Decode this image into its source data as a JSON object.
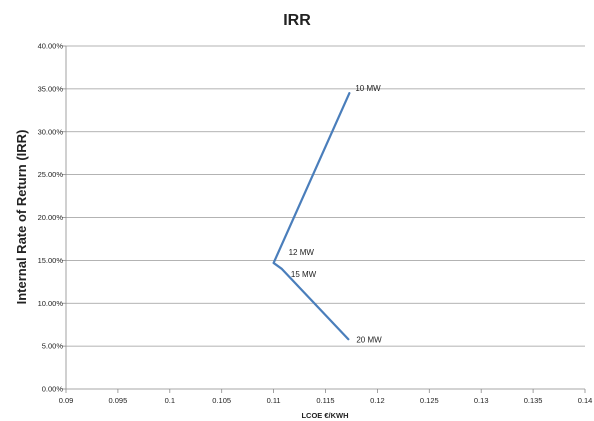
{
  "chart_data": {
    "type": "line",
    "title": "IRR",
    "xlabel": "LCOE  €/KWH",
    "ylabel": "Internal Rate of Return (IRR)",
    "xlim": [
      0.09,
      0.14
    ],
    "ylim": [
      0,
      0.4
    ],
    "grid": true,
    "x_ticks": [
      0.09,
      0.095,
      0.1,
      0.105,
      0.11,
      0.115,
      0.12,
      0.125,
      0.13,
      0.135,
      0.14
    ],
    "x_tick_labels": [
      "0.09",
      "0.095",
      "0.1",
      "0.105",
      "0.11",
      "0.115",
      "0.12",
      "0.125",
      "0.13",
      "0.135",
      "0.14"
    ],
    "y_ticks": [
      0,
      0.05,
      0.1,
      0.15,
      0.2,
      0.25,
      0.3,
      0.35,
      0.4
    ],
    "y_tick_labels": [
      "0.00%",
      "5.00%",
      "10.00%",
      "15.00%",
      "20.00%",
      "25.00%",
      "30.00%",
      "35.00%",
      "40.00%"
    ],
    "series": [
      {
        "color": "#4a7ebb",
        "points": [
          {
            "label": "10 MW",
            "x": 0.1173,
            "y": 0.345
          },
          {
            "label": "12 MW",
            "x": 0.11,
            "y": 0.147
          },
          {
            "label": "15 MW",
            "x": 0.1108,
            "y": 0.14
          },
          {
            "label": "20 MW",
            "x": 0.1172,
            "y": 0.058
          }
        ]
      }
    ]
  }
}
